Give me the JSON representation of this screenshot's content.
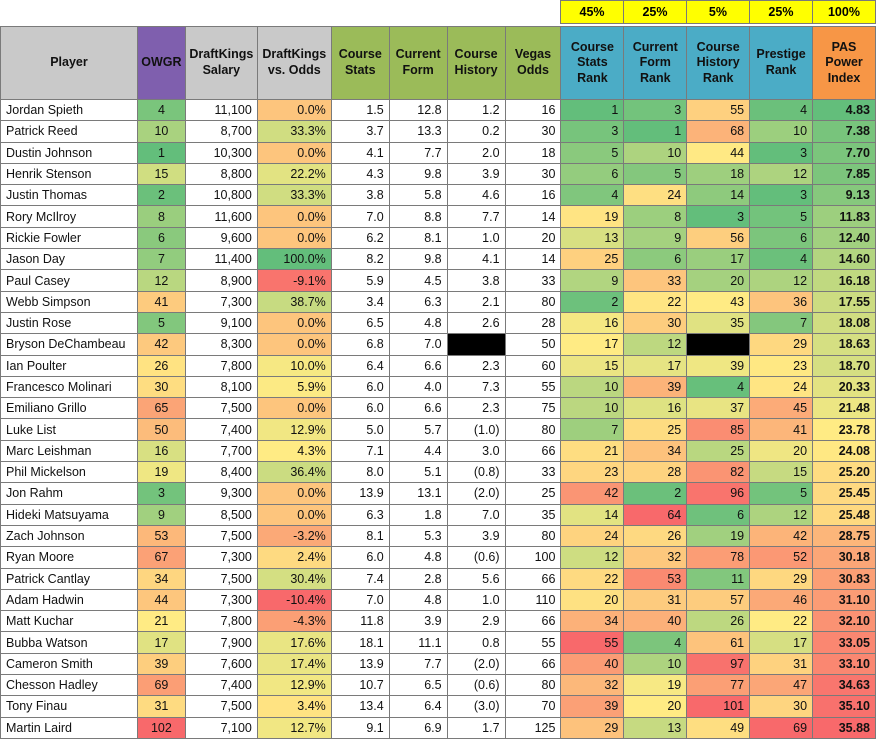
{
  "weights": {
    "course_stats": "45%",
    "current_form": "25%",
    "course_history": "5%",
    "prestige": "25%",
    "total": "100%"
  },
  "headers": [
    {
      "label": [
        "Player"
      ],
      "bg": "#c9c9c9"
    },
    {
      "label": [
        "OWGR"
      ],
      "bg": "#7f5fae"
    },
    {
      "label": [
        "DraftKings",
        "Salary"
      ],
      "bg": "#c9c9c9"
    },
    {
      "label": [
        "DraftKings",
        "vs. Odds"
      ],
      "bg": "#c9c9c9"
    },
    {
      "label": [
        "Course",
        "Stats"
      ],
      "bg": "#9bbb59"
    },
    {
      "label": [
        "Current",
        "Form"
      ],
      "bg": "#9bbb59"
    },
    {
      "label": [
        "Course",
        "History"
      ],
      "bg": "#9bbb59"
    },
    {
      "label": [
        "Vegas",
        "Odds"
      ],
      "bg": "#9bbb59"
    },
    {
      "label": [
        "Course",
        "Stats",
        "Rank"
      ],
      "bg": "#4bacc6"
    },
    {
      "label": [
        "Current",
        "Form",
        "Rank"
      ],
      "bg": "#4bacc6"
    },
    {
      "label": [
        "Course",
        "History",
        "Rank"
      ],
      "bg": "#4bacc6"
    },
    {
      "label": [
        "Prestige",
        "Rank"
      ],
      "bg": "#4bacc6"
    },
    {
      "label": [
        "PAS",
        "Power",
        "Index"
      ],
      "bg": "#f79646"
    }
  ],
  "rows": [
    [
      "Jordan Spieth",
      "4",
      "11,100",
      "0.0%",
      "1.5",
      "12.8",
      "1.2",
      "16",
      "1",
      "3",
      "55",
      "4",
      "4.83"
    ],
    [
      "Patrick Reed",
      "10",
      "8,700",
      "33.3%",
      "3.7",
      "13.3",
      "0.2",
      "30",
      "3",
      "1",
      "68",
      "10",
      "7.38"
    ],
    [
      "Dustin Johnson",
      "1",
      "10,300",
      "0.0%",
      "4.1",
      "7.7",
      "2.0",
      "18",
      "5",
      "10",
      "44",
      "3",
      "7.70"
    ],
    [
      "Henrik Stenson",
      "15",
      "8,800",
      "22.2%",
      "4.3",
      "9.8",
      "3.9",
      "30",
      "6",
      "5",
      "18",
      "12",
      "7.85"
    ],
    [
      "Justin Thomas",
      "2",
      "10,800",
      "33.3%",
      "3.8",
      "5.8",
      "4.6",
      "16",
      "4",
      "24",
      "14",
      "3",
      "9.13"
    ],
    [
      "Rory McIlroy",
      "8",
      "11,600",
      "0.0%",
      "7.0",
      "8.8",
      "7.7",
      "14",
      "19",
      "8",
      "3",
      "5",
      "11.83"
    ],
    [
      "Rickie Fowler",
      "6",
      "9,600",
      "0.0%",
      "6.2",
      "8.1",
      "1.0",
      "20",
      "13",
      "9",
      "56",
      "6",
      "12.40"
    ],
    [
      "Jason Day",
      "7",
      "11,400",
      "100.0%",
      "8.2",
      "9.8",
      "4.1",
      "14",
      "25",
      "6",
      "17",
      "4",
      "14.60"
    ],
    [
      "Paul Casey",
      "12",
      "8,900",
      "-9.1%",
      "5.9",
      "4.5",
      "3.8",
      "33",
      "9",
      "33",
      "20",
      "12",
      "16.18"
    ],
    [
      "Webb Simpson",
      "41",
      "7,300",
      "38.7%",
      "3.4",
      "6.3",
      "2.1",
      "80",
      "2",
      "22",
      "43",
      "36",
      "17.55"
    ],
    [
      "Justin Rose",
      "5",
      "9,100",
      "0.0%",
      "6.5",
      "4.8",
      "2.6",
      "28",
      "16",
      "30",
      "35",
      "7",
      "18.08"
    ],
    [
      "Bryson DeChambeau",
      "42",
      "8,300",
      "0.0%",
      "6.8",
      "7.0",
      "",
      "50",
      "17",
      "12",
      "",
      "29",
      "18.63"
    ],
    [
      "Ian Poulter",
      "26",
      "7,800",
      "10.0%",
      "6.4",
      "6.6",
      "2.3",
      "60",
      "15",
      "17",
      "39",
      "23",
      "18.70"
    ],
    [
      "Francesco Molinari",
      "30",
      "8,100",
      "5.9%",
      "6.0",
      "4.0",
      "7.3",
      "55",
      "10",
      "39",
      "4",
      "24",
      "20.33"
    ],
    [
      "Emiliano Grillo",
      "65",
      "7,500",
      "0.0%",
      "6.0",
      "6.6",
      "2.3",
      "75",
      "10",
      "16",
      "37",
      "45",
      "21.48"
    ],
    [
      "Luke List",
      "50",
      "7,400",
      "12.9%",
      "5.0",
      "5.7",
      "(1.0)",
      "80",
      "7",
      "25",
      "85",
      "41",
      "23.78"
    ],
    [
      "Marc Leishman",
      "16",
      "7,700",
      "4.3%",
      "7.1",
      "4.4",
      "3.0",
      "66",
      "21",
      "34",
      "25",
      "20",
      "24.08"
    ],
    [
      "Phil Mickelson",
      "19",
      "8,400",
      "36.4%",
      "8.0",
      "5.1",
      "(0.8)",
      "33",
      "23",
      "28",
      "82",
      "15",
      "25.20"
    ],
    [
      "Jon Rahm",
      "3",
      "9,300",
      "0.0%",
      "13.9",
      "13.1",
      "(2.0)",
      "25",
      "42",
      "2",
      "96",
      "5",
      "25.45"
    ],
    [
      "Hideki Matsuyama",
      "9",
      "8,500",
      "0.0%",
      "6.3",
      "1.8",
      "7.0",
      "35",
      "14",
      "64",
      "6",
      "12",
      "25.48"
    ],
    [
      "Zach Johnson",
      "53",
      "7,500",
      "-3.2%",
      "8.1",
      "5.3",
      "3.9",
      "80",
      "24",
      "26",
      "19",
      "42",
      "28.75"
    ],
    [
      "Ryan Moore",
      "67",
      "7,300",
      "2.4%",
      "6.0",
      "4.8",
      "(0.6)",
      "100",
      "12",
      "32",
      "78",
      "52",
      "30.18"
    ],
    [
      "Patrick Cantlay",
      "34",
      "7,500",
      "30.4%",
      "7.4",
      "2.8",
      "5.6",
      "66",
      "22",
      "53",
      "11",
      "29",
      "30.83"
    ],
    [
      "Adam Hadwin",
      "44",
      "7,300",
      "-10.4%",
      "7.0",
      "4.8",
      "1.0",
      "110",
      "20",
      "31",
      "57",
      "46",
      "31.10"
    ],
    [
      "Matt Kuchar",
      "21",
      "7,800",
      "-4.3%",
      "11.8",
      "3.9",
      "2.9",
      "66",
      "34",
      "40",
      "26",
      "22",
      "32.10"
    ],
    [
      "Bubba Watson",
      "17",
      "7,900",
      "17.6%",
      "18.1",
      "11.1",
      "0.8",
      "55",
      "55",
      "4",
      "61",
      "17",
      "33.05"
    ],
    [
      "Cameron Smith",
      "39",
      "7,600",
      "17.4%",
      "13.9",
      "7.7",
      "(2.0)",
      "66",
      "40",
      "10",
      "97",
      "31",
      "33.10"
    ],
    [
      "Chesson Hadley",
      "69",
      "7,400",
      "12.9%",
      "10.7",
      "6.5",
      "(0.6)",
      "80",
      "32",
      "19",
      "77",
      "47",
      "34.63"
    ],
    [
      "Tony Finau",
      "31",
      "7,500",
      "3.4%",
      "13.4",
      "6.4",
      "(3.0)",
      "70",
      "39",
      "20",
      "101",
      "30",
      "35.10"
    ],
    [
      "Martin Laird",
      "102",
      "7,100",
      "12.7%",
      "9.1",
      "6.9",
      "1.7",
      "125",
      "29",
      "13",
      "49",
      "69",
      "35.88"
    ]
  ]
}
